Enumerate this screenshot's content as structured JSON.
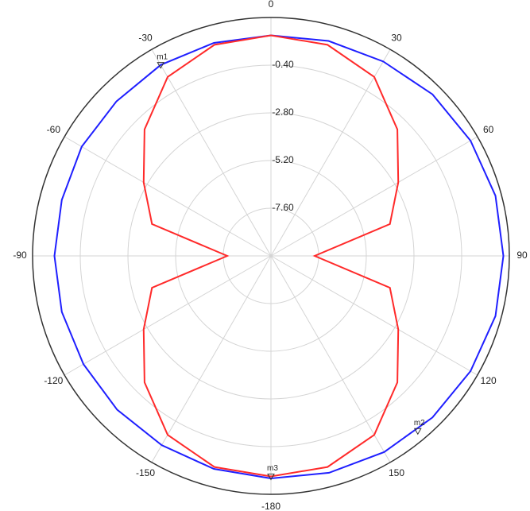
{
  "chart_data": {
    "type": "polar",
    "x": [
      -180,
      -165,
      -150,
      -135,
      -120,
      -105,
      -90,
      -75,
      -60,
      -45,
      -30,
      -15,
      0,
      15,
      30,
      45,
      60,
      75,
      90,
      105,
      120,
      135,
      150,
      165
    ],
    "series": [
      {
        "color": "#1f1fff",
        "values": [
          1.2,
          1.1,
          1.0,
          0.95,
          0.9,
          0.9,
          0.9,
          0.9,
          1.0,
          1.0,
          1.1,
          1.1,
          1.1,
          1.2,
          1.3,
          1.5,
          1.6,
          1.7,
          1.7,
          1.7,
          1.6,
          1.5,
          1.4,
          1.3
        ]
      },
      {
        "color": "#ff2a2a",
        "values": [
          1.1,
          1.0,
          0.4,
          -1.0,
          -2.6,
          -3.8,
          -7.8,
          -3.8,
          -2.6,
          -1.0,
          0.4,
          1.0,
          1.1,
          1.0,
          0.4,
          -1.0,
          -2.6,
          -3.8,
          -7.8,
          -3.8,
          -2.6,
          -1.0,
          0.4,
          1.0
        ]
      }
    ],
    "xlim": [
      -180,
      180
    ],
    "xticks": [
      0,
      30,
      60,
      90,
      120,
      150,
      -180,
      -150,
      -120,
      -90,
      -60,
      -30
    ],
    "ylim": [
      -10,
      2
    ],
    "yticks": [
      {
        "value": -7.6,
        "label": "-7.60"
      },
      {
        "value": -5.2,
        "label": "-5.20"
      },
      {
        "value": -2.8,
        "label": "-2.80"
      },
      {
        "value": -0.4,
        "label": "-0.40"
      }
    ],
    "grid": true,
    "annotations": [
      {
        "text": "m1",
        "x": -30,
        "y": 1.1
      },
      {
        "text": "m2",
        "x": 140,
        "y": 1.5
      },
      {
        "text": "m3",
        "x": 180,
        "y": 1.1
      }
    ]
  }
}
